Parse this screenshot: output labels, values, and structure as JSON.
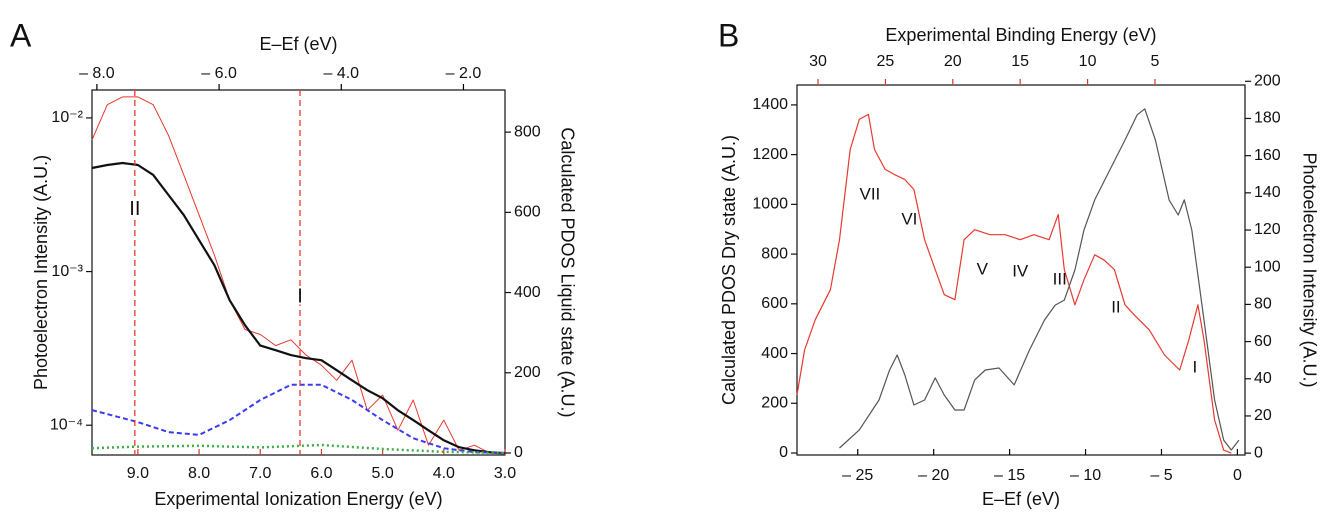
{
  "chart_data": [
    {
      "type": "line",
      "panel_label": "A",
      "xlabel": "Experimental Ionization Energy (eV)",
      "x_color": "#e0332f",
      "xlim": [
        9.75,
        3.0
      ],
      "xticks": [
        {
          "value": 9,
          "label": "9.0"
        },
        {
          "value": 8,
          "label": "8.0"
        },
        {
          "value": 7,
          "label": "7.0"
        },
        {
          "value": 6,
          "label": "6.0"
        },
        {
          "value": 5,
          "label": "5.0"
        },
        {
          "value": 4,
          "label": "4.0"
        },
        {
          "value": 3,
          "label": "3.0"
        }
      ],
      "x2label": "E–Ef (eV)",
      "x2_color": "#000000",
      "x2lim": [
        -8.08,
        -1.32
      ],
      "x2ticks": [
        {
          "value": -8,
          "label": "– 8.0"
        },
        {
          "value": -6,
          "label": "– 6.0"
        },
        {
          "value": -4,
          "label": "– 4.0"
        },
        {
          "value": -2,
          "label": "– 2.0"
        }
      ],
      "ylabel": "Photoelectron Intensity  (A.U.)",
      "ylog": true,
      "ylim": [
        6.4e-05,
        0.0152
      ],
      "yticks": [
        {
          "value": 0.0001,
          "label": "10⁻⁴"
        },
        {
          "value": 0.001,
          "label": "10⁻³"
        },
        {
          "value": 0.01,
          "label": "10⁻²"
        }
      ],
      "y2label": "Calculated PDOS Liquid state (A.U.)",
      "y2lim": [
        -5,
        905
      ],
      "y2ticks": [
        0,
        200,
        400,
        600,
        800
      ],
      "series": [
        {
          "color": "#e8392f",
          "width": 1,
          "dash": "solid",
          "x": [
            9.75,
            9.5,
            9.25,
            9.0,
            8.75,
            8.5,
            8.25,
            8.0,
            7.75,
            7.5,
            7.25,
            7.0,
            6.75,
            6.5,
            6.25,
            6.0,
            5.75,
            5.5,
            5.25,
            5.0,
            4.75,
            4.5,
            4.25,
            4.0,
            3.75,
            3.5,
            3.25,
            3.0
          ],
          "values": [
            0.0072,
            0.0122,
            0.0137,
            0.0137,
            0.0122,
            0.0077,
            0.00426,
            0.00233,
            0.00128,
            0.00065,
            0.00042,
            0.00039,
            0.00033,
            0.00036,
            0.000286,
            0.000246,
            0.000196,
            0.000265,
            0.000125,
            0.000157,
            9.27e-05,
            0.000146,
            7.41e-05,
            0.000108,
            6.87e-05,
            7.41e-05,
            6.58e-05,
            6.5e-05
          ]
        },
        {
          "color": "#111111",
          "width": 2.2,
          "dash": "solid",
          "x": [
            9.75,
            9.5,
            9.25,
            9.0,
            8.75,
            8.5,
            8.25,
            8.0,
            7.75,
            7.5,
            7.25,
            7.0,
            6.75,
            6.5,
            6.25,
            6.0,
            5.75,
            5.5,
            5.25,
            5.0,
            4.75,
            4.5,
            4.25,
            4.0,
            3.75,
            3.5,
            3.25,
            3.0
          ],
          "values": [
            0.00472,
            0.00494,
            0.00509,
            0.00494,
            0.00426,
            0.00315,
            0.00233,
            0.0016,
            0.0011,
            0.00065,
            0.000448,
            0.00033,
            0.000308,
            0.000286,
            0.000273,
            0.000265,
            0.000228,
            0.000196,
            0.000169,
            0.00015,
            0.000125,
            0.000108,
            9.27e-05,
            7.98e-05,
            7.19e-05,
            6.87e-05,
            6.67e-05,
            6.58e-05
          ]
        },
        {
          "color": "#3b3bf0",
          "width": 2,
          "dash": "dashed",
          "axis": "y2",
          "x": [
            9.75,
            9.0,
            8.5,
            8.0,
            7.5,
            7.0,
            6.5,
            6.0,
            5.5,
            5.0,
            4.5,
            4.0,
            3.5,
            3.0
          ],
          "values": [
            107,
            77,
            52,
            45,
            82,
            132,
            170,
            170,
            132,
            82,
            37,
            12,
            2,
            0
          ]
        },
        {
          "color": "#3cb043",
          "width": 2.5,
          "dash": "dotted",
          "axis": "y2",
          "x": [
            9.75,
            9.0,
            8.0,
            7.0,
            6.0,
            5.0,
            4.0,
            3.0
          ],
          "values": [
            12,
            16,
            18,
            14,
            20,
            10,
            3,
            0
          ]
        }
      ],
      "markers": [
        {
          "label": "II",
          "x": 9.05,
          "y": 0.00252
        },
        {
          "label": "I",
          "x": 6.35,
          "y": 0.00068
        }
      ],
      "marker_color": "#e8392f"
    },
    {
      "type": "line",
      "panel_label": "B",
      "xlabel": "E–Ef (eV)",
      "x_color": "#000000",
      "xlim": [
        -29.0,
        0.5
      ],
      "xticks": [
        {
          "value": -25,
          "label": "– 25"
        },
        {
          "value": -20,
          "label": "– 20"
        },
        {
          "value": -15,
          "label": "– 15"
        },
        {
          "value": -10,
          "label": "– 10"
        },
        {
          "value": -5,
          "label": "– 5"
        },
        0
      ],
      "x2label": "Experimental Binding Energy (eV)",
      "x2_color": "#e0332f",
      "x2lim": [
        31.56,
        -1.68
      ],
      "x2ticks": [
        30,
        25,
        20,
        15,
        10,
        5
      ],
      "ylabel": "Calculated PDOS Dry state (A.U.)",
      "ylim": [
        -8,
        1480
      ],
      "yticks": [
        0,
        200,
        400,
        600,
        800,
        1000,
        1200,
        1400
      ],
      "y2label": "Photoelectron Intensity (A.U.)",
      "y2lim": [
        -1,
        198
      ],
      "y2ticks": [
        0,
        20,
        40,
        60,
        80,
        100,
        120,
        140,
        160,
        180,
        200
      ],
      "series": [
        {
          "color": "#e8392f",
          "width": 1.2,
          "dash": "solid",
          "axis": "y2",
          "x": [
            -29.0,
            -28.5,
            -27.8,
            -26.8,
            -26.2,
            -25.5,
            -24.9,
            -24.3,
            -23.9,
            -23.2,
            -22.6,
            -21.9,
            -21.3,
            -20.6,
            -19.9,
            -19.3,
            -18.6,
            -18.0,
            -17.3,
            -16.3,
            -15.3,
            -14.3,
            -13.4,
            -12.4,
            -11.8,
            -11.4,
            -10.7,
            -10.1,
            -9.4,
            -8.8,
            -8.1,
            -7.4,
            -6.8,
            -5.8,
            -4.8,
            -3.8,
            -3.2,
            -2.6,
            -2.2,
            -1.5,
            -0.9,
            -0.4
          ],
          "values": [
            31.3,
            55.5,
            71.7,
            87.9,
            114.8,
            163.3,
            179.5,
            182.2,
            163.3,
            152.6,
            149.9,
            147.2,
            141.8,
            114.8,
            98.7,
            85.2,
            82.5,
            114.8,
            120.2,
            117.5,
            117.5,
            114.8,
            117.5,
            114.8,
            128.3,
            98.7,
            79.8,
            93.3,
            106.7,
            104.0,
            98.7,
            79.8,
            74.4,
            66.3,
            52.8,
            44.7,
            60.9,
            79.8,
            60.9,
            17.8,
            1.6,
            0
          ]
        },
        {
          "color": "#555555",
          "width": 1.2,
          "dash": "solid",
          "x": [
            -26.2,
            -24.9,
            -23.6,
            -22.9,
            -22.4,
            -21.9,
            -21.3,
            -20.6,
            -19.9,
            -19.3,
            -18.6,
            -18.0,
            -17.3,
            -16.6,
            -15.7,
            -14.7,
            -13.7,
            -12.7,
            -12.0,
            -11.4,
            -10.7,
            -10.1,
            -9.4,
            -8.4,
            -7.4,
            -6.6,
            -6.1,
            -5.4,
            -4.5,
            -3.9,
            -3.5,
            -3.0,
            -2.2,
            -1.5,
            -0.9,
            -0.4,
            0.1
          ],
          "values": [
            20,
            93,
            213,
            334,
            394,
            314,
            193,
            213,
            302,
            233,
            173,
            173,
            294,
            334,
            342,
            274,
            414,
            535,
            595,
            615,
            736,
            897,
            1018,
            1138,
            1259,
            1360,
            1384,
            1259,
            1018,
            957,
            1018,
            897,
            535,
            213,
            52,
            12,
            52
          ]
        }
      ],
      "annotations": [
        {
          "text": "VII",
          "x": -24.2,
          "y": 1038
        },
        {
          "text": "VI",
          "x": -21.6,
          "y": 937
        },
        {
          "text": "V",
          "x": -16.8,
          "y": 736
        },
        {
          "text": "IV",
          "x": -14.3,
          "y": 728
        },
        {
          "text": "III",
          "x": -11.7,
          "y": 696
        },
        {
          "text": "II",
          "x": -8.0,
          "y": 583
        },
        {
          "text": "I",
          "x": -2.8,
          "y": 342
        }
      ]
    }
  ]
}
